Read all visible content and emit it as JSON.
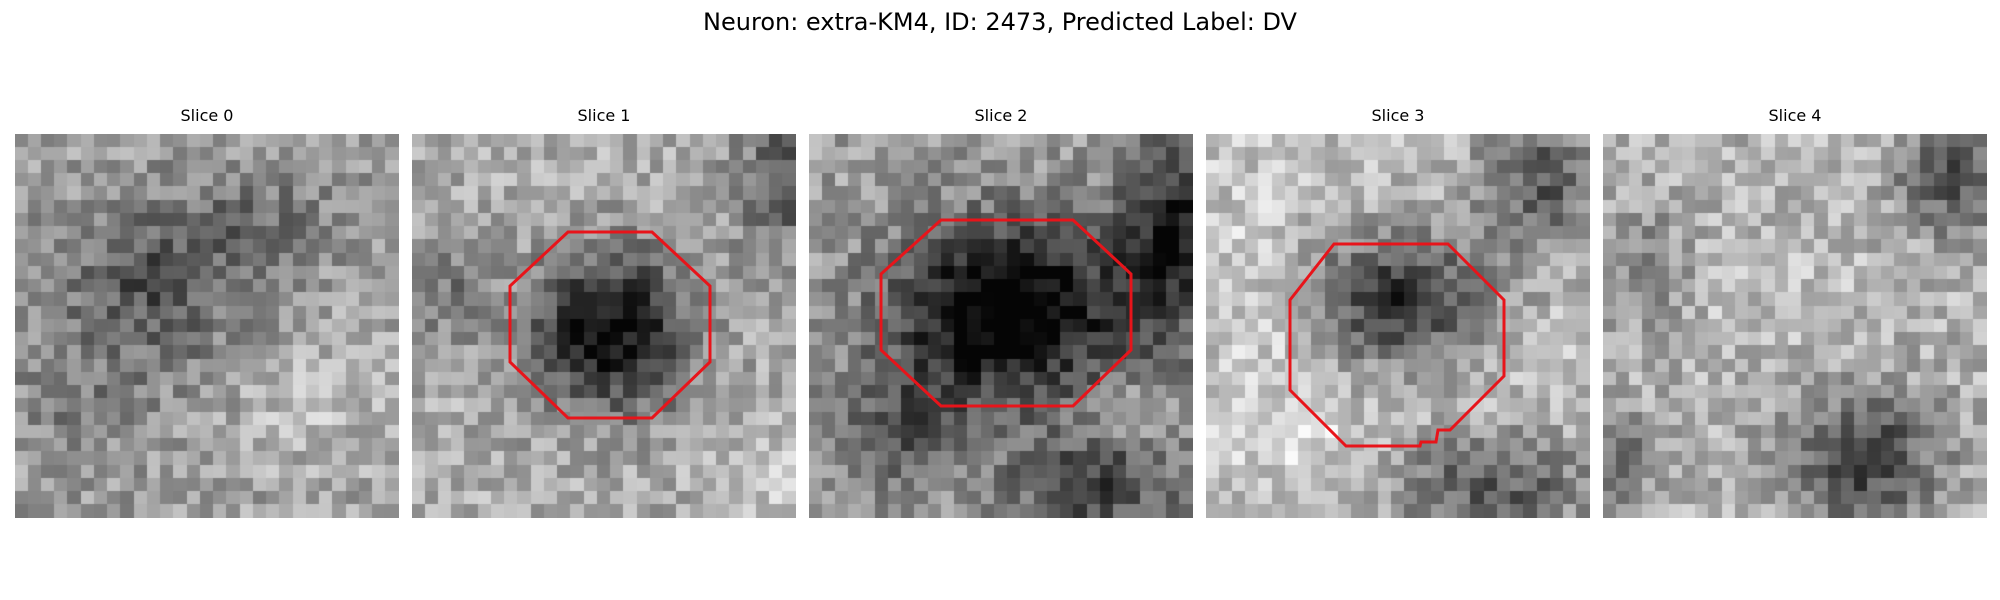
{
  "figure": {
    "title": "Neuron: extra-KM4, ID: 2473, Predicted Label: DV"
  },
  "colors": {
    "roi_outline": "#e8141a",
    "background": "#ffffff",
    "colormap": "gray"
  },
  "slices": [
    {
      "title": "Slice 0",
      "has_roi": false
    },
    {
      "title": "Slice 1",
      "has_roi": true
    },
    {
      "title": "Slice 2",
      "has_roi": true
    },
    {
      "title": "Slice 3",
      "has_roi": true
    },
    {
      "title": "Slice 4",
      "has_roi": false
    }
  ]
}
